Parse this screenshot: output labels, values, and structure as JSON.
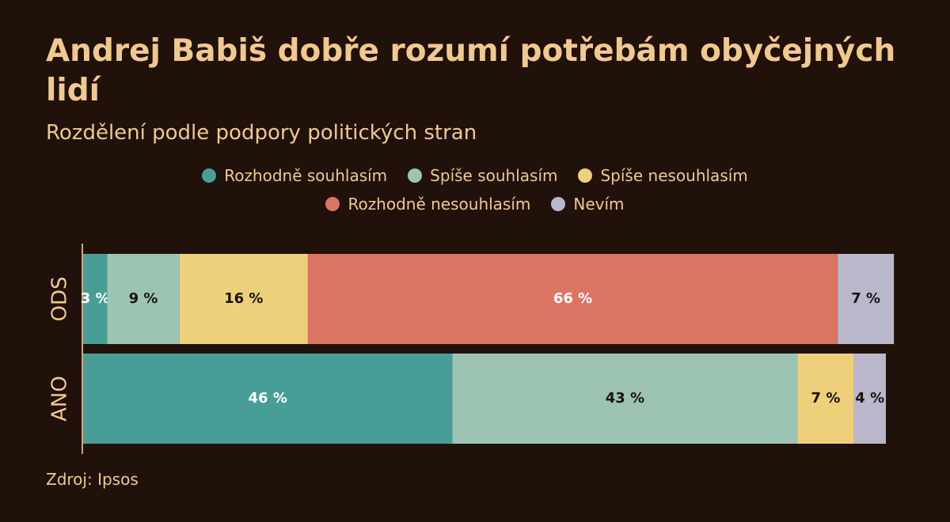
{
  "chart_data": {
    "type": "bar",
    "orientation": "horizontal",
    "stacked": true,
    "normalized": true,
    "title": "Andrej Babiš dobře rozumí potřebám obyčejných lidí",
    "subtitle": "Rozdělení podle podpory politických stran",
    "categories": [
      "ODS",
      "ANO"
    ],
    "series": [
      {
        "name": "Rozhodně souhlasím",
        "color": "#489e97",
        "values": [
          3,
          46
        ],
        "labels": [
          "3 %",
          "46 %"
        ],
        "label_color": "#ffffff"
      },
      {
        "name": "Spíše souhlasím",
        "color": "#9dc4b3",
        "values": [
          9,
          43
        ],
        "labels": [
          "9 %",
          "43 %"
        ],
        "label_color": "#1b1210"
      },
      {
        "name": "Spíše nesouhlasím",
        "color": "#efd07a",
        "values": [
          16,
          7
        ],
        "labels": [
          "16 %",
          "7 %"
        ],
        "label_color": "#1b1210"
      },
      {
        "name": "Rozhodně nesouhlasím",
        "color": "#dc7463",
        "values": [
          66,
          0
        ],
        "labels": [
          "66 %",
          ""
        ],
        "label_color": "#ffffff"
      },
      {
        "name": "Nevím",
        "color": "#b9b8cb",
        "values": [
          7,
          4
        ],
        "labels": [
          "7 %",
          "4 %"
        ],
        "label_color": "#1b1210"
      }
    ],
    "legend_position": "top-center",
    "grid": false,
    "xlim": [
      0,
      100
    ]
  },
  "source": "Zdroj: Ipsos",
  "colors": {
    "background": "#21110b",
    "text": "#f1c98e",
    "axis": "#c9a77a"
  }
}
